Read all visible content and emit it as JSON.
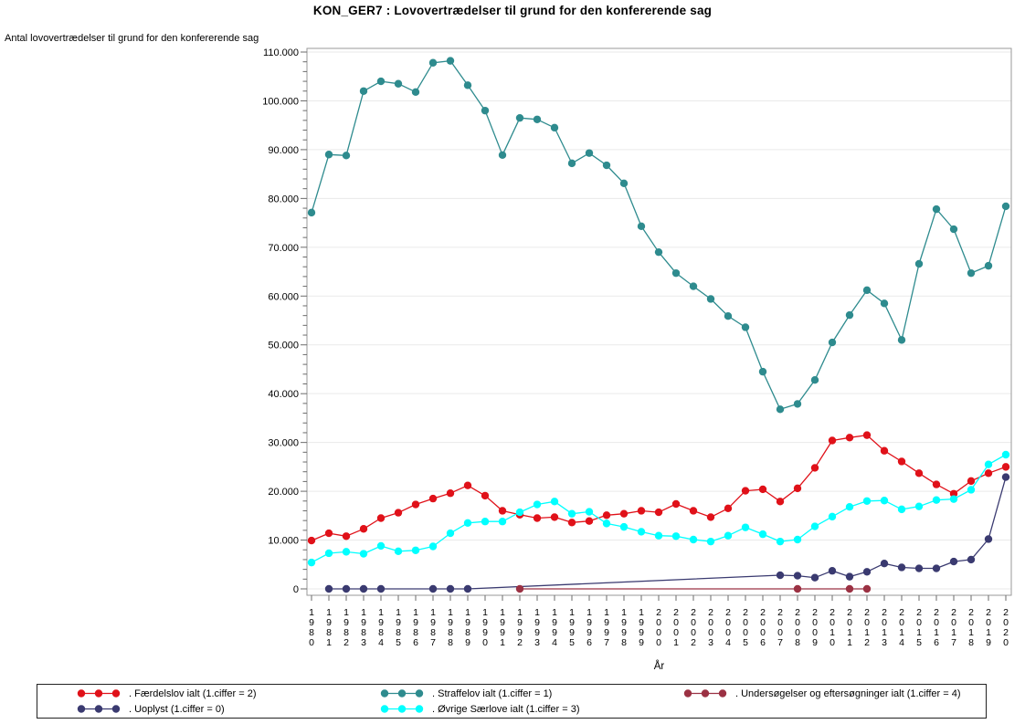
{
  "chart_data": {
    "type": "line",
    "title": "KON_GER7 : Lovovertrædelser til grund for den konfererende sag",
    "ylabel": "Antal lovovertrædelser til grund for den konfererende sag",
    "xlabel": "År",
    "ylim": [
      0,
      110000
    ],
    "ytick_interval": 10000,
    "yminor_tick_interval": 2000,
    "ytick_labels": [
      "0",
      "10.000",
      "20.000",
      "30.000",
      "40.000",
      "50.000",
      "60.000",
      "70.000",
      "80.000",
      "90.000",
      "100.000",
      "110.000"
    ],
    "grid": "horizontal-major-only",
    "legend_position": "bottom-boxed",
    "categories": [
      1980,
      1981,
      1982,
      1983,
      1984,
      1985,
      1986,
      1987,
      1988,
      1989,
      1990,
      1991,
      1992,
      1993,
      1994,
      1995,
      1996,
      1997,
      1998,
      1999,
      2000,
      2001,
      2002,
      2003,
      2004,
      2005,
      2006,
      2007,
      2008,
      2009,
      2010,
      2011,
      2012,
      2013,
      2014,
      2015,
      2016,
      2017,
      2018,
      2019,
      2020
    ],
    "series": [
      {
        "name": ". Straffelov ialt (1.ciffer = 1)",
        "color": "#2e8b8e",
        "values": [
          77100,
          89000,
          88800,
          102000,
          104000,
          103500,
          101800,
          107800,
          108200,
          103200,
          98000,
          88900,
          96500,
          96200,
          94500,
          87200,
          89300,
          86800,
          83100,
          74300,
          69000,
          64700,
          62000,
          59400,
          55900,
          53600,
          44500,
          36800,
          37900,
          42800,
          50500,
          56100,
          61200,
          58500,
          51000,
          66600,
          77800,
          73700,
          64700,
          66200,
          78400
        ]
      },
      {
        "name": ". Færdelslov ialt (1.ciffer = 2)",
        "color": "#e01119",
        "values": [
          9900,
          11400,
          10800,
          12300,
          14500,
          15600,
          17300,
          18500,
          19600,
          21200,
          19100,
          16000,
          15200,
          14500,
          14700,
          13600,
          13900,
          15100,
          15400,
          16000,
          15700,
          17400,
          16000,
          14700,
          16500,
          20100,
          20400,
          17900,
          20600,
          24800,
          30400,
          31000,
          31500,
          28300,
          26100,
          23700,
          21400,
          19500,
          22100,
          23700,
          25000
        ]
      },
      {
        "name": ". Øvrige Særlove ialt (1.ciffer = 3)",
        "color": "#00ffff",
        "values": [
          5400,
          7300,
          7600,
          7200,
          8800,
          7700,
          7900,
          8700,
          11400,
          13500,
          13800,
          13800,
          15700,
          17300,
          17900,
          15400,
          15800,
          13400,
          12700,
          11700,
          10900,
          10800,
          10100,
          9700,
          10900,
          12600,
          11200,
          9700,
          10100,
          12800,
          14800,
          16800,
          18000,
          18100,
          16300,
          16900,
          18200,
          18400,
          20300,
          25500,
          27500
        ]
      },
      {
        "name": ". Uoplyst (1.ciffer = 0)",
        "color": "#3a3a70",
        "values": [
          null,
          0,
          0,
          0,
          0,
          null,
          null,
          0,
          0,
          0,
          null,
          null,
          null,
          null,
          null,
          null,
          null,
          null,
          null,
          null,
          null,
          null,
          null,
          null,
          null,
          null,
          null,
          2800,
          2700,
          2300,
          3700,
          2500,
          3500,
          5200,
          4400,
          4200,
          4200,
          5600,
          6000,
          10200,
          22900
        ]
      },
      {
        "name": ". Undersøgelser og eftersøgninger ialt (1.ciffer = 4)",
        "color": "#9b3143",
        "values": [
          null,
          null,
          null,
          null,
          null,
          null,
          null,
          null,
          null,
          null,
          null,
          null,
          0,
          null,
          null,
          null,
          null,
          null,
          null,
          null,
          null,
          null,
          null,
          null,
          null,
          null,
          null,
          null,
          0,
          null,
          null,
          0,
          0,
          null,
          null,
          null,
          null,
          null,
          null,
          null,
          null
        ]
      }
    ],
    "legend": {
      "rows": [
        [
          1,
          0,
          4
        ],
        [
          3,
          2
        ]
      ]
    }
  }
}
